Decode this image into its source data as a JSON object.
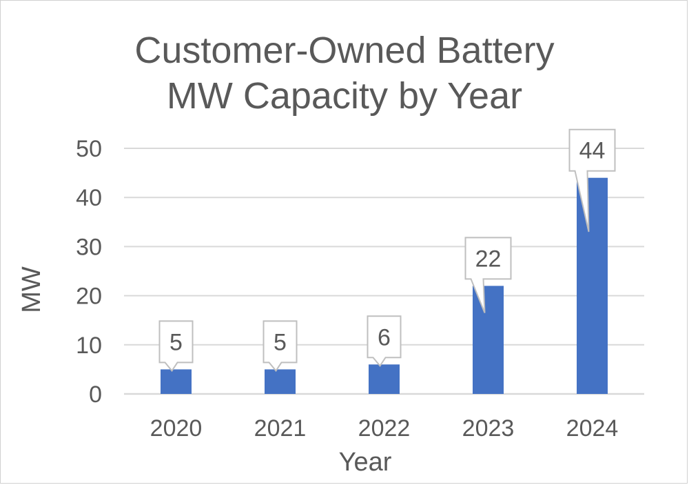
{
  "chart_data": {
    "type": "bar",
    "title_lines": [
      "Customer-Owned Battery",
      "MW Capacity by Year"
    ],
    "xlabel": "Year",
    "ylabel": "MW",
    "categories": [
      "2020",
      "2021",
      "2022",
      "2023",
      "2024"
    ],
    "values": [
      5,
      5,
      6,
      22,
      44
    ],
    "data_labels": [
      "5",
      "5",
      "6",
      "22",
      "44"
    ],
    "ylim": [
      0,
      50
    ],
    "yticks": [
      0,
      10,
      20,
      30,
      40,
      50
    ],
    "ytick_labels": [
      "0",
      "10",
      "20",
      "30",
      "40",
      "50"
    ],
    "grid": true,
    "legend": "none",
    "colors": {
      "bar": "#4472C4",
      "grid": "#D9D9D9",
      "text": "#595959",
      "callout_border": "#BFBFBF",
      "callout_fill": "#FFFFFF"
    }
  }
}
